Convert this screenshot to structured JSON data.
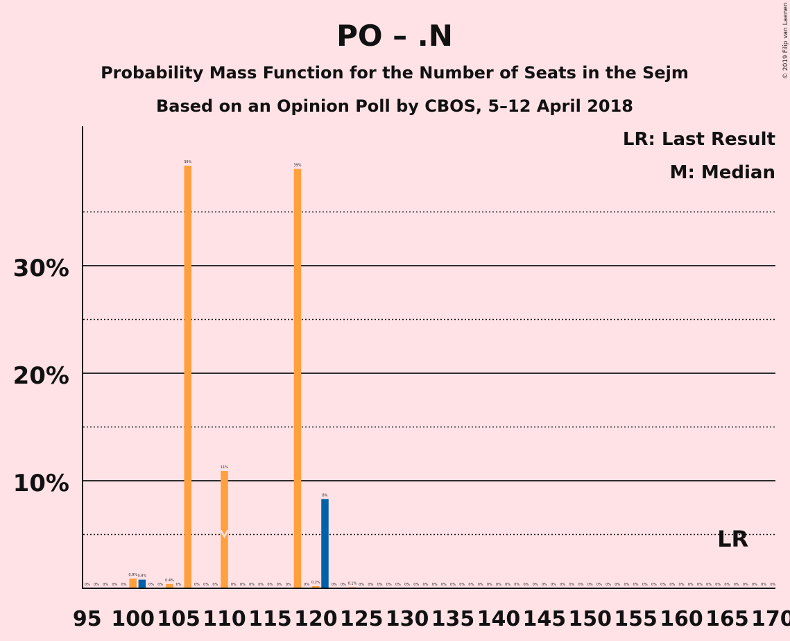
{
  "chart_data": {
    "type": "bar",
    "title": "PO – .N",
    "subtitle": "Probability Mass Function for the Number of Seats in the Sejm",
    "subtitle2": "Based on an Opinion Poll by CBOS, 5–12 April 2018",
    "copyright": "© 2019 Filip van Laenen",
    "legend": {
      "last_result": "LR: Last Result",
      "median": "M: Median",
      "placement": "top-right"
    },
    "markers": {
      "last_result_label": "LR",
      "last_result_seat": 166,
      "median_label": "M",
      "median_seat": 110
    },
    "x_ticks": [
      "95",
      "100",
      "105",
      "110",
      "115",
      "120",
      "125",
      "130",
      "135",
      "140",
      "145",
      "150",
      "155",
      "160",
      "165",
      "170"
    ],
    "y_ticks": [
      "10%",
      "20%",
      "30%"
    ],
    "ylim": [
      0,
      43
    ],
    "grid": true,
    "colors": {
      "background": "#FFE2E6",
      "orange": "#FFA03E",
      "blue": "#0060AA",
      "axis": "#111111"
    },
    "bars": [
      {
        "x": 95,
        "value": 0,
        "label": "0%",
        "color": "orange"
      },
      {
        "x": 96,
        "value": 0,
        "label": "0%",
        "color": "orange"
      },
      {
        "x": 97,
        "value": 0,
        "label": "0%",
        "color": "orange"
      },
      {
        "x": 98,
        "value": 0,
        "label": "0%",
        "color": "orange"
      },
      {
        "x": 99,
        "value": 0,
        "label": "0%",
        "color": "orange"
      },
      {
        "x": 100,
        "value": 0.9,
        "label": "0.9%",
        "color": "orange"
      },
      {
        "x": 101,
        "value": 0.8,
        "label": "0.8%",
        "color": "blue"
      },
      {
        "x": 102,
        "value": 0,
        "label": "0%",
        "color": "orange"
      },
      {
        "x": 103,
        "value": 0,
        "label": "0%",
        "color": "orange"
      },
      {
        "x": 104,
        "value": 0.4,
        "label": "0.4%",
        "color": "orange"
      },
      {
        "x": 105,
        "value": 0,
        "label": "0%",
        "color": "orange"
      },
      {
        "x": 106,
        "value": 39.3,
        "label": "39%",
        "color": "orange"
      },
      {
        "x": 107,
        "value": 0,
        "label": "0%",
        "color": "orange"
      },
      {
        "x": 108,
        "value": 0,
        "label": "0%",
        "color": "orange"
      },
      {
        "x": 109,
        "value": 0,
        "label": "0%",
        "color": "orange"
      },
      {
        "x": 110,
        "value": 10.9,
        "label": "11%",
        "color": "orange"
      },
      {
        "x": 111,
        "value": 0,
        "label": "0%",
        "color": "orange"
      },
      {
        "x": 112,
        "value": 0,
        "label": "0%",
        "color": "orange"
      },
      {
        "x": 113,
        "value": 0,
        "label": "0%",
        "color": "orange"
      },
      {
        "x": 114,
        "value": 0,
        "label": "0%",
        "color": "orange"
      },
      {
        "x": 115,
        "value": 0,
        "label": "0%",
        "color": "orange"
      },
      {
        "x": 116,
        "value": 0,
        "label": "0%",
        "color": "orange"
      },
      {
        "x": 117,
        "value": 0,
        "label": "0%",
        "color": "orange"
      },
      {
        "x": 118,
        "value": 39.0,
        "label": "39%",
        "color": "orange"
      },
      {
        "x": 119,
        "value": 0,
        "label": "0%",
        "color": "orange"
      },
      {
        "x": 120,
        "value": 0.2,
        "label": "0.2%",
        "color": "orange"
      },
      {
        "x": 121,
        "value": 8.3,
        "label": "8%",
        "color": "blue"
      },
      {
        "x": 122,
        "value": 0,
        "label": "0%",
        "color": "orange"
      },
      {
        "x": 123,
        "value": 0,
        "label": "0%",
        "color": "orange"
      },
      {
        "x": 124,
        "value": 0.1,
        "label": "0.1%",
        "color": "orange"
      },
      {
        "x": 125,
        "value": 0,
        "label": "0%",
        "color": "orange"
      },
      {
        "x": 126,
        "value": 0,
        "label": "0%",
        "color": "orange"
      },
      {
        "x": 127,
        "value": 0,
        "label": "0%",
        "color": "orange"
      },
      {
        "x": 128,
        "value": 0,
        "label": "0%",
        "color": "orange"
      },
      {
        "x": 129,
        "value": 0,
        "label": "0%",
        "color": "orange"
      },
      {
        "x": 130,
        "value": 0,
        "label": "0%",
        "color": "orange"
      },
      {
        "x": 131,
        "value": 0,
        "label": "0%",
        "color": "orange"
      },
      {
        "x": 132,
        "value": 0,
        "label": "0%",
        "color": "orange"
      },
      {
        "x": 133,
        "value": 0,
        "label": "0%",
        "color": "orange"
      },
      {
        "x": 134,
        "value": 0,
        "label": "0%",
        "color": "orange"
      },
      {
        "x": 135,
        "value": 0,
        "label": "0%",
        "color": "orange"
      },
      {
        "x": 136,
        "value": 0,
        "label": "0%",
        "color": "orange"
      },
      {
        "x": 137,
        "value": 0,
        "label": "0%",
        "color": "orange"
      },
      {
        "x": 138,
        "value": 0,
        "label": "0%",
        "color": "orange"
      },
      {
        "x": 139,
        "value": 0,
        "label": "0%",
        "color": "orange"
      },
      {
        "x": 140,
        "value": 0,
        "label": "0%",
        "color": "orange"
      },
      {
        "x": 141,
        "value": 0,
        "label": "0%",
        "color": "orange"
      },
      {
        "x": 142,
        "value": 0,
        "label": "0%",
        "color": "orange"
      },
      {
        "x": 143,
        "value": 0,
        "label": "0%",
        "color": "orange"
      },
      {
        "x": 144,
        "value": 0,
        "label": "0%",
        "color": "orange"
      },
      {
        "x": 145,
        "value": 0,
        "label": "0%",
        "color": "orange"
      },
      {
        "x": 146,
        "value": 0,
        "label": "0%",
        "color": "orange"
      },
      {
        "x": 147,
        "value": 0,
        "label": "0%",
        "color": "orange"
      },
      {
        "x": 148,
        "value": 0,
        "label": "0%",
        "color": "orange"
      },
      {
        "x": 149,
        "value": 0,
        "label": "0%",
        "color": "orange"
      },
      {
        "x": 150,
        "value": 0,
        "label": "0%",
        "color": "orange"
      },
      {
        "x": 151,
        "value": 0,
        "label": "0%",
        "color": "orange"
      },
      {
        "x": 152,
        "value": 0,
        "label": "0%",
        "color": "orange"
      },
      {
        "x": 153,
        "value": 0,
        "label": "0%",
        "color": "orange"
      },
      {
        "x": 154,
        "value": 0,
        "label": "0%",
        "color": "orange"
      },
      {
        "x": 155,
        "value": 0,
        "label": "0%",
        "color": "orange"
      },
      {
        "x": 156,
        "value": 0,
        "label": "0%",
        "color": "orange"
      },
      {
        "x": 157,
        "value": 0,
        "label": "0%",
        "color": "orange"
      },
      {
        "x": 158,
        "value": 0,
        "label": "0%",
        "color": "orange"
      },
      {
        "x": 159,
        "value": 0,
        "label": "0%",
        "color": "orange"
      },
      {
        "x": 160,
        "value": 0,
        "label": "0%",
        "color": "orange"
      },
      {
        "x": 161,
        "value": 0,
        "label": "0%",
        "color": "orange"
      },
      {
        "x": 162,
        "value": 0,
        "label": "0%",
        "color": "orange"
      },
      {
        "x": 163,
        "value": 0,
        "label": "0%",
        "color": "orange"
      },
      {
        "x": 164,
        "value": 0,
        "label": "0%",
        "color": "orange"
      },
      {
        "x": 165,
        "value": 0,
        "label": "0%",
        "color": "orange"
      },
      {
        "x": 166,
        "value": 0,
        "label": "0%",
        "color": "orange"
      },
      {
        "x": 167,
        "value": 0,
        "label": "0%",
        "color": "orange"
      },
      {
        "x": 168,
        "value": 0,
        "label": "0%",
        "color": "orange"
      },
      {
        "x": 169,
        "value": 0,
        "label": "0%",
        "color": "orange"
      },
      {
        "x": 170,
        "value": 0,
        "label": "0%",
        "color": "orange"
      }
    ]
  }
}
